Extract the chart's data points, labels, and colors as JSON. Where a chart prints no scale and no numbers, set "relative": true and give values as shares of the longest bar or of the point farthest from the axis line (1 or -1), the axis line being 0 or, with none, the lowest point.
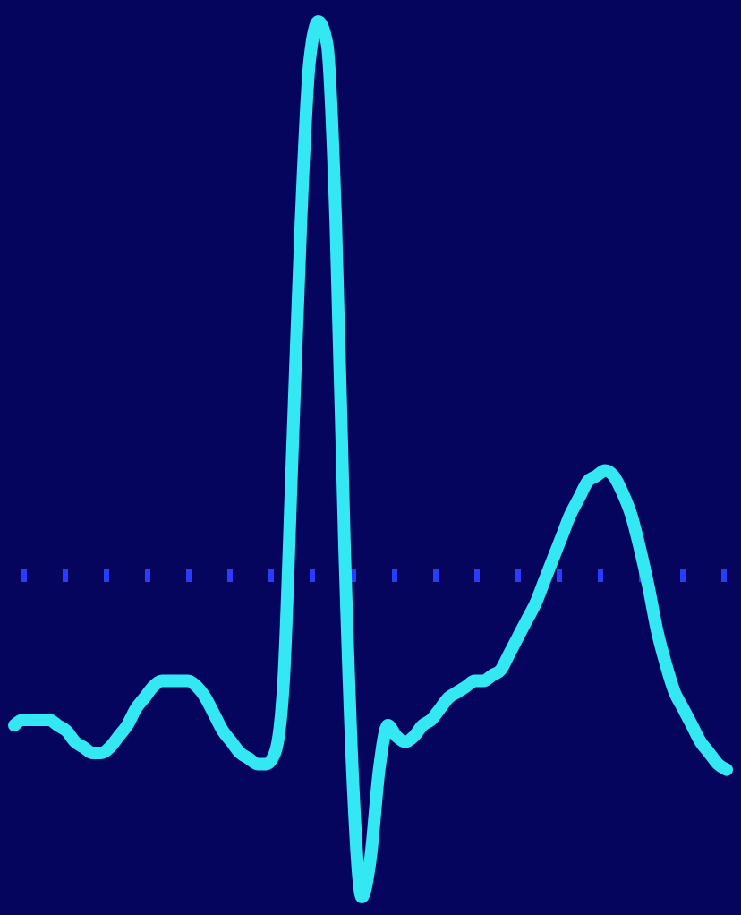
{
  "chart_data": {
    "type": "line",
    "relative": true,
    "line_style": "solid",
    "ref_lines": [
      {
        "axis": "y",
        "value": 0,
        "color": "#2a3cff",
        "line_style": "dashed"
      }
    ],
    "categories": [
      null,
      null,
      null,
      null,
      null,
      null,
      null,
      null,
      null,
      null,
      null,
      null,
      null,
      null,
      null,
      null,
      null,
      null,
      null,
      null,
      null,
      null,
      null,
      null,
      null,
      null,
      null,
      null,
      null,
      null,
      null,
      null,
      null,
      null,
      null,
      null,
      null,
      null,
      null,
      null,
      null,
      null,
      null,
      null,
      null,
      null,
      null,
      null,
      null,
      null,
      null,
      null,
      null,
      null,
      null,
      null,
      null,
      null,
      null,
      null,
      null,
      null,
      null,
      null,
      null,
      null,
      null,
      null,
      null,
      null,
      null,
      null,
      null,
      null,
      null,
      null,
      null,
      null,
      null,
      null,
      null,
      null,
      null
    ],
    "series": [
      {
        "color": "#33e8f2",
        "values": [
          -0.27,
          -0.26,
          -0.26,
          -0.26,
          -0.26,
          -0.27,
          -0.28,
          -0.3,
          -0.31,
          -0.32,
          -0.32,
          -0.31,
          -0.29,
          -0.27,
          -0.24,
          -0.22,
          -0.2,
          -0.19,
          -0.19,
          -0.19,
          -0.19,
          -0.2,
          -0.22,
          -0.25,
          -0.28,
          -0.3,
          -0.32,
          -0.33,
          -0.34,
          -0.34,
          -0.32,
          -0.19,
          0.22,
          0.64,
          0.93,
          1,
          0.96,
          0.64,
          0.06,
          -0.38,
          -0.58,
          -0.51,
          -0.35,
          -0.27,
          -0.29,
          -0.3,
          -0.29,
          -0.27,
          -0.26,
          -0.24,
          -0.22,
          -0.21,
          -0.2,
          -0.19,
          -0.19,
          -0.18,
          -0.17,
          -0.14,
          -0.11,
          -0.08,
          -0.05,
          -0.01,
          0.03,
          0.07,
          0.11,
          0.14,
          0.17,
          0.18,
          0.19,
          0.18,
          0.15,
          0.11,
          0.05,
          -0.02,
          -0.1,
          -0.16,
          -0.21,
          -0.24,
          -0.27,
          -0.3,
          -0.32,
          -0.34,
          -0.35
        ]
      }
    ]
  }
}
